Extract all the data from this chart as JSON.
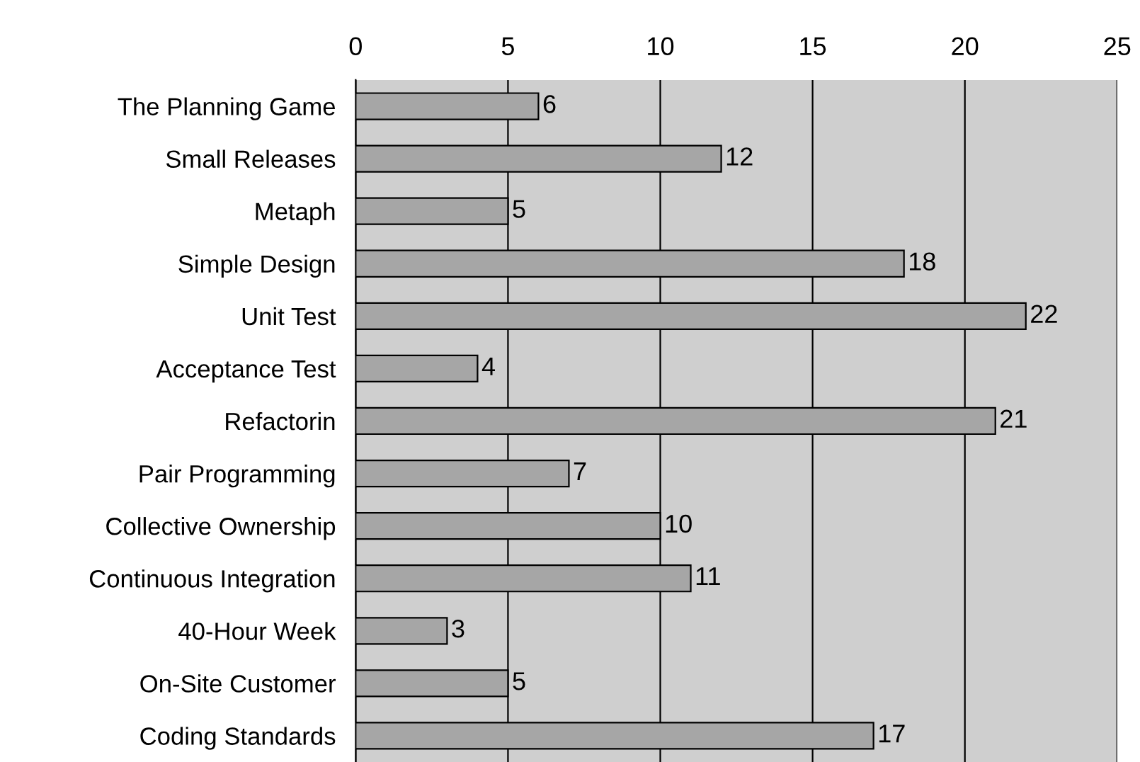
{
  "chart_data": {
    "type": "bar",
    "orientation": "horizontal",
    "categories": [
      "The Planning Game",
      "Small Releases",
      "Metaph",
      "Simple Design",
      "Unit Test",
      "Acceptance Test",
      "Refactorin",
      "Pair Programming",
      "Collective Ownership",
      "Continuous Integration",
      "40-Hour Week",
      "On-Site Customer",
      "Coding Standards"
    ],
    "values": [
      6,
      12,
      5,
      18,
      22,
      4,
      21,
      7,
      10,
      11,
      3,
      5,
      17
    ],
    "color": "#a6a6a6",
    "xlim": [
      0,
      25
    ],
    "xticks": [
      0,
      5,
      10,
      15,
      20,
      25
    ],
    "grid": "x",
    "data_labels": true,
    "legend": false
  }
}
